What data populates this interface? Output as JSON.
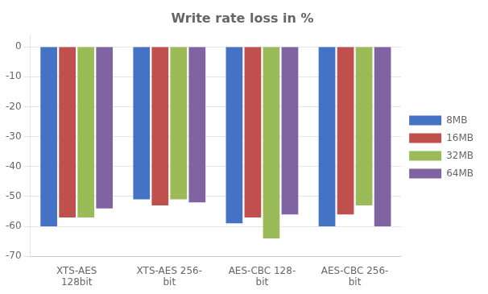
{
  "chart_data": {
    "type": "bar",
    "title": "Write rate loss in %",
    "categories": [
      "XTS-AES\n128bit",
      "XTS-AES 256-\nbit",
      "AES-CBC 128-\nbit",
      "AES-CBC 256-\nbit"
    ],
    "series": [
      {
        "name": "8MB",
        "color": "#4472C4",
        "values": [
          -60,
          -51,
          -59,
          -60
        ]
      },
      {
        "name": "16MB",
        "color": "#C0504D",
        "values": [
          -57,
          -53,
          -57,
          -56
        ]
      },
      {
        "name": "32MB",
        "color": "#9BBB59",
        "values": [
          -57,
          -51,
          -64,
          -53
        ]
      },
      {
        "name": "64MB",
        "color": "#8064A2",
        "values": [
          -54,
          -52,
          -56,
          -60
        ]
      }
    ],
    "ylim": [
      -70,
      4
    ],
    "yticks": [
      0,
      -10,
      -20,
      -30,
      -40,
      -50,
      -60,
      -70
    ],
    "grid": true,
    "legend": "right"
  }
}
